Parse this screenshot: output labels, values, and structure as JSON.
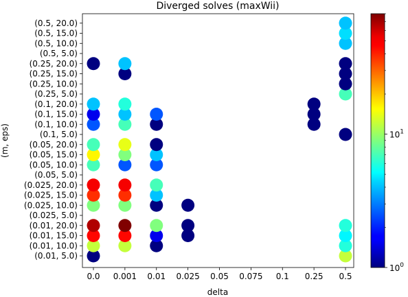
{
  "chart_data": {
    "type": "scatter",
    "title": "Diverged solves (maxWii)",
    "xlabel": "delta",
    "ylabel": "(m, eps)",
    "x_categories": [
      "0.0",
      "0.001",
      "0.01",
      "0.025",
      "0.05",
      "0.075",
      "0.1",
      "0.25",
      "0.5"
    ],
    "y_categories": [
      "(0.01, 5.0)",
      "(0.01, 10.0)",
      "(0.01, 15.0)",
      "(0.01, 20.0)",
      "(0.025, 5.0)",
      "(0.025, 10.0)",
      "(0.025, 15.0)",
      "(0.025, 20.0)",
      "(0.05, 5.0)",
      "(0.05, 10.0)",
      "(0.05, 15.0)",
      "(0.05, 20.0)",
      "(0.1, 5.0)",
      "(0.1, 10.0)",
      "(0.1, 15.0)",
      "(0.1, 20.0)",
      "(0.25, 5.0)",
      "(0.25, 10.0)",
      "(0.25, 15.0)",
      "(0.25, 20.0)",
      "(0.5, 5.0)",
      "(0.5, 10.0)",
      "(0.5, 15.0)",
      "(0.5, 20.0)"
    ],
    "colormap": "jet",
    "color_scale": "log",
    "color_range": [
      1,
      80
    ],
    "colorbar_ticks": [
      {
        "value": 1,
        "label": "10",
        "exp": "0"
      },
      {
        "value": 10,
        "label": "10",
        "exp": "1"
      }
    ],
    "points": [
      {
        "x": "0.0",
        "y": "(0.01, 5.0)",
        "value": 1.0
      },
      {
        "x": "0.0",
        "y": "(0.01, 10.0)",
        "value": 12
      },
      {
        "x": "0.0",
        "y": "(0.01, 15.0)",
        "value": 45
      },
      {
        "x": "0.0",
        "y": "(0.01, 20.0)",
        "value": 65
      },
      {
        "x": "0.0",
        "y": "(0.025, 10.0)",
        "value": 9
      },
      {
        "x": "0.0",
        "y": "(0.025, 15.0)",
        "value": 38
      },
      {
        "x": "0.0",
        "y": "(0.025, 20.0)",
        "value": 48
      },
      {
        "x": "0.0",
        "y": "(0.05, 10.0)",
        "value": 7
      },
      {
        "x": "0.0",
        "y": "(0.05, 15.0)",
        "value": 16
      },
      {
        "x": "0.0",
        "y": "(0.05, 20.0)",
        "value": 7
      },
      {
        "x": "0.0",
        "y": "(0.1, 10.0)",
        "value": 2.5
      },
      {
        "x": "0.0",
        "y": "(0.1, 15.0)",
        "value": 1.6
      },
      {
        "x": "0.0",
        "y": "(0.1, 20.0)",
        "value": 4
      },
      {
        "x": "0.0",
        "y": "(0.25, 20.0)",
        "value": 1.0
      },
      {
        "x": "0.001",
        "y": "(0.01, 10.0)",
        "value": 12
      },
      {
        "x": "0.001",
        "y": "(0.01, 15.0)",
        "value": 45
      },
      {
        "x": "0.001",
        "y": "(0.01, 20.0)",
        "value": 80
      },
      {
        "x": "0.001",
        "y": "(0.025, 10.0)",
        "value": 9
      },
      {
        "x": "0.001",
        "y": "(0.025, 15.0)",
        "value": 38
      },
      {
        "x": "0.001",
        "y": "(0.025, 20.0)",
        "value": 48
      },
      {
        "x": "0.001",
        "y": "(0.05, 10.0)",
        "value": 2.5
      },
      {
        "x": "0.001",
        "y": "(0.05, 15.0)",
        "value": 9
      },
      {
        "x": "0.001",
        "y": "(0.05, 20.0)",
        "value": 14
      },
      {
        "x": "0.001",
        "y": "(0.1, 10.0)",
        "value": 7
      },
      {
        "x": "0.001",
        "y": "(0.1, 15.0)",
        "value": 4
      },
      {
        "x": "0.001",
        "y": "(0.1, 20.0)",
        "value": 6
      },
      {
        "x": "0.001",
        "y": "(0.25, 15.0)",
        "value": 1.0
      },
      {
        "x": "0.001",
        "y": "(0.25, 20.0)",
        "value": 4
      },
      {
        "x": "0.01",
        "y": "(0.01, 10.0)",
        "value": 1.0
      },
      {
        "x": "0.01",
        "y": "(0.01, 15.0)",
        "value": 1.6
      },
      {
        "x": "0.01",
        "y": "(0.01, 20.0)",
        "value": 9
      },
      {
        "x": "0.01",
        "y": "(0.025, 10.0)",
        "value": 1.0
      },
      {
        "x": "0.01",
        "y": "(0.025, 15.0)",
        "value": 4
      },
      {
        "x": "0.01",
        "y": "(0.025, 20.0)",
        "value": 7
      },
      {
        "x": "0.01",
        "y": "(0.05, 10.0)",
        "value": 2.5
      },
      {
        "x": "0.01",
        "y": "(0.05, 15.0)",
        "value": 4
      },
      {
        "x": "0.01",
        "y": "(0.05, 20.0)",
        "value": 1.0
      },
      {
        "x": "0.01",
        "y": "(0.1, 10.0)",
        "value": 1.0
      },
      {
        "x": "0.01",
        "y": "(0.1, 15.0)",
        "value": 2.5
      },
      {
        "x": "0.025",
        "y": "(0.01, 15.0)",
        "value": 1.0
      },
      {
        "x": "0.025",
        "y": "(0.01, 20.0)",
        "value": 1.0
      },
      {
        "x": "0.025",
        "y": "(0.025, 10.0)",
        "value": 1.0
      },
      {
        "x": "0.25",
        "y": "(0.1, 10.0)",
        "value": 1.0
      },
      {
        "x": "0.25",
        "y": "(0.1, 15.0)",
        "value": 1.0
      },
      {
        "x": "0.25",
        "y": "(0.1, 20.0)",
        "value": 1.0
      },
      {
        "x": "0.5",
        "y": "(0.01, 5.0)",
        "value": 12
      },
      {
        "x": "0.5",
        "y": "(0.01, 10.0)",
        "value": 6
      },
      {
        "x": "0.5",
        "y": "(0.01, 15.0)",
        "value": 5
      },
      {
        "x": "0.5",
        "y": "(0.01, 20.0)",
        "value": 6
      },
      {
        "x": "0.5",
        "y": "(0.1, 5.0)",
        "value": 1.0
      },
      {
        "x": "0.5",
        "y": "(0.25, 5.0)",
        "value": 7
      },
      {
        "x": "0.5",
        "y": "(0.25, 10.0)",
        "value": 1.0
      },
      {
        "x": "0.5",
        "y": "(0.25, 15.0)",
        "value": 1.0
      },
      {
        "x": "0.5",
        "y": "(0.25, 20.0)",
        "value": 1.0
      },
      {
        "x": "0.5",
        "y": "(0.5, 10.0)",
        "value": 4
      },
      {
        "x": "0.5",
        "y": "(0.5, 15.0)",
        "value": 4.5
      },
      {
        "x": "0.5",
        "y": "(0.5, 20.0)",
        "value": 4
      }
    ]
  }
}
